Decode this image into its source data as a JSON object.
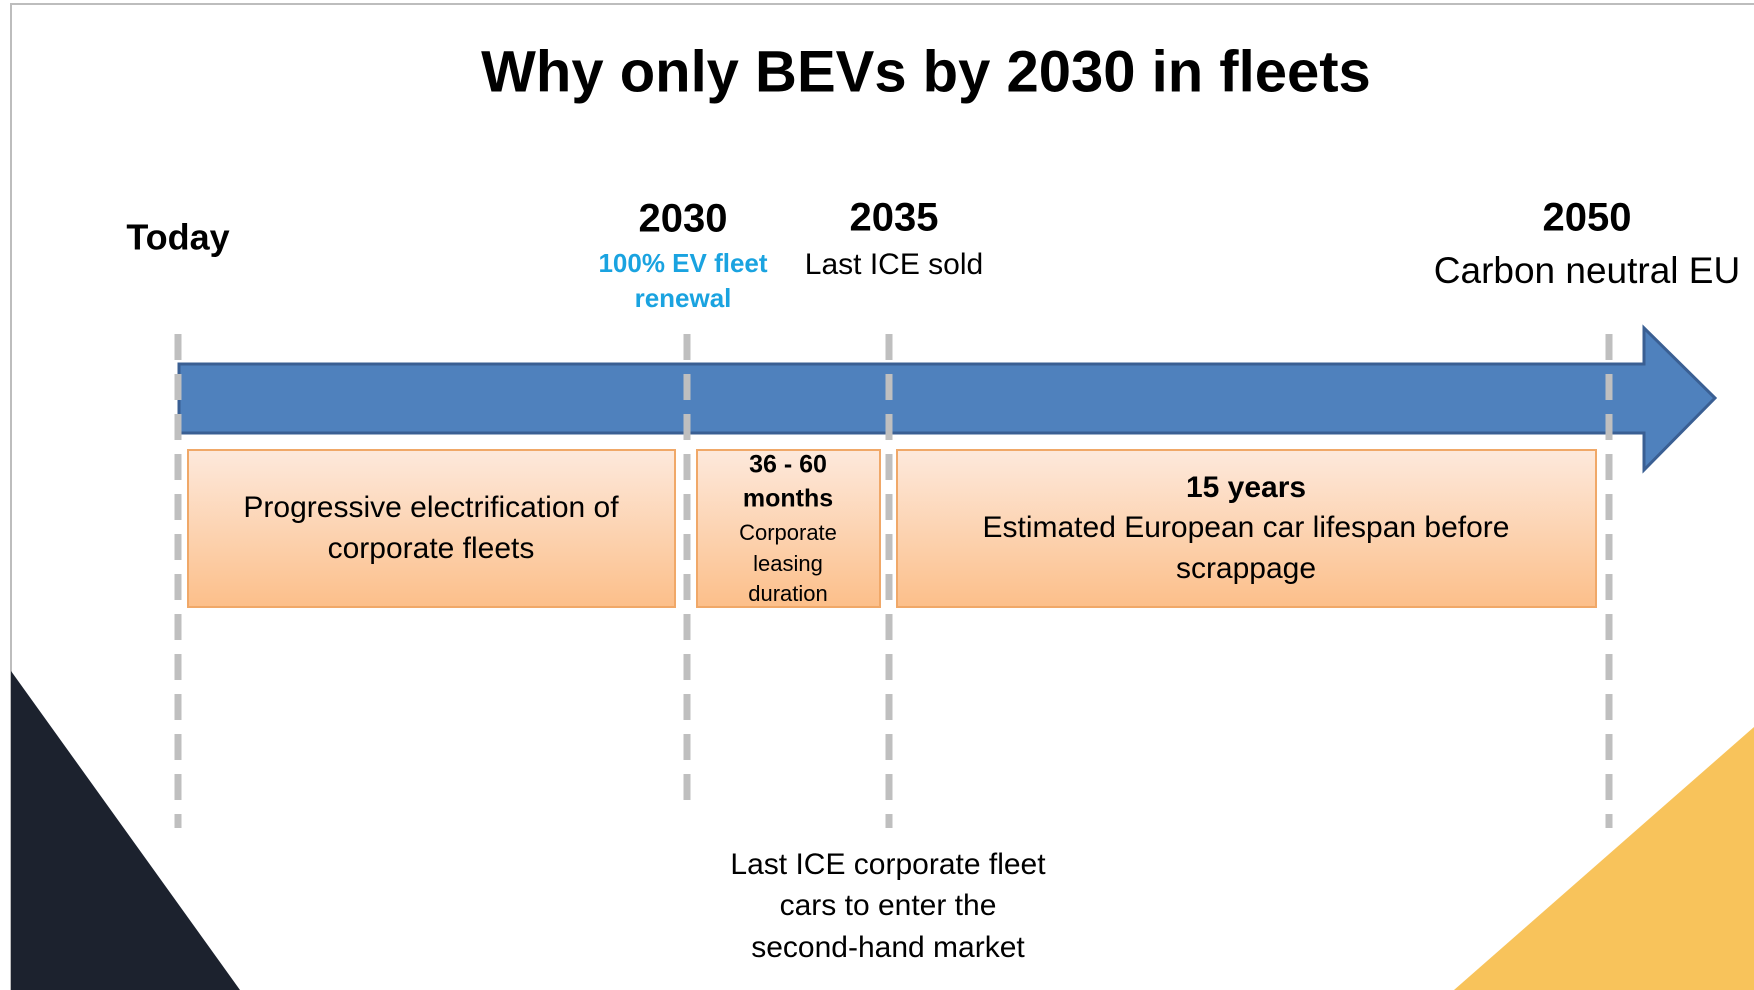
{
  "title": "Why only BEVs by 2030 in fleets",
  "milestones": [
    {
      "label": "Today"
    },
    {
      "label": "2030",
      "note": [
        "100% EV fleet",
        "renewal"
      ]
    },
    {
      "label": "2035",
      "note": [
        "Last ICE sold"
      ]
    },
    {
      "label": "2050",
      "note": [
        "Carbon neutral EU"
      ]
    }
  ],
  "boxes": [
    {
      "lines": [
        "Progressive electrification of",
        "corporate fleets"
      ]
    },
    {
      "heading": [
        "36 - 60",
        "months"
      ],
      "lines": [
        "Corporate",
        "leasing",
        "duration"
      ]
    },
    {
      "heading": [
        "15 years"
      ],
      "lines": [
        "Estimated European car lifespan before",
        "scrappage"
      ]
    }
  ],
  "footnote": [
    "Last ICE corporate fleet",
    "cars to enter the",
    "second-hand market"
  ]
}
